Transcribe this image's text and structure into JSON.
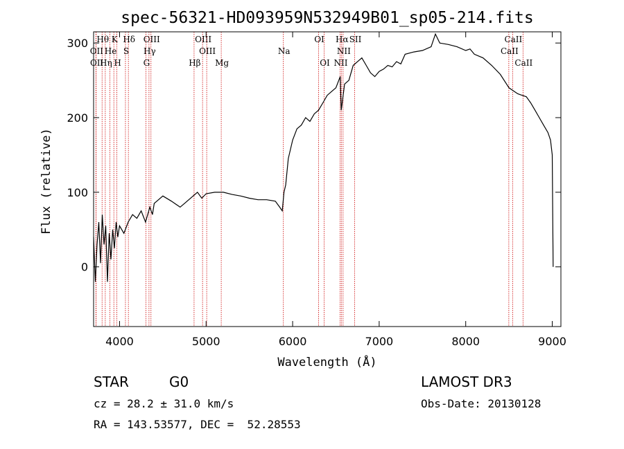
{
  "chart_data": {
    "type": "line",
    "title": "spec-56321-HD093959N532949B01_sp05-214.fits",
    "xlabel": "Wavelength (Å)",
    "ylabel": "Flux (relative)",
    "xlim": [
      3700,
      9100
    ],
    "ylim": [
      -80,
      315
    ],
    "x_ticks": [
      4000,
      5000,
      6000,
      7000,
      8000,
      9000
    ],
    "y_ticks": [
      0,
      100,
      200,
      300
    ],
    "series": [
      {
        "name": "flux",
        "x": [
          3700,
          3720,
          3740,
          3760,
          3780,
          3800,
          3820,
          3840,
          3860,
          3880,
          3900,
          3920,
          3940,
          3960,
          3980,
          4000,
          4050,
          4100,
          4150,
          4200,
          4250,
          4300,
          4350,
          4380,
          4400,
          4450,
          4500,
          4600,
          4700,
          4750,
          4800,
          4850,
          4900,
          4950,
          5000,
          5100,
          5200,
          5300,
          5400,
          5500,
          5600,
          5700,
          5800,
          5850,
          5880,
          5900,
          5920,
          5950,
          6000,
          6050,
          6100,
          6150,
          6200,
          6250,
          6300,
          6350,
          6400,
          6450,
          6500,
          6550,
          6562,
          6600,
          6650,
          6700,
          6750,
          6800,
          6850,
          6900,
          6950,
          7000,
          7050,
          7100,
          7150,
          7200,
          7250,
          7300,
          7400,
          7500,
          7600,
          7650,
          7700,
          7800,
          7900,
          8000,
          8050,
          8100,
          8200,
          8300,
          8400,
          8500,
          8550,
          8600,
          8650,
          8700,
          8750,
          8800,
          8850,
          8900,
          8950,
          8980,
          9000,
          9010
        ],
        "y": [
          40,
          -20,
          30,
          60,
          5,
          70,
          30,
          55,
          -20,
          45,
          10,
          50,
          25,
          60,
          40,
          55,
          45,
          60,
          70,
          65,
          75,
          60,
          80,
          70,
          85,
          90,
          95,
          88,
          80,
          85,
          90,
          95,
          100,
          92,
          98,
          100,
          100,
          97,
          95,
          92,
          90,
          90,
          88,
          80,
          75,
          100,
          110,
          145,
          170,
          185,
          190,
          200,
          195,
          205,
          210,
          220,
          230,
          235,
          240,
          255,
          210,
          245,
          250,
          270,
          275,
          280,
          270,
          260,
          255,
          262,
          265,
          270,
          268,
          275,
          272,
          285,
          288,
          290,
          295,
          312,
          300,
          298,
          295,
          290,
          292,
          285,
          280,
          270,
          258,
          240,
          236,
          232,
          230,
          228,
          220,
          210,
          200,
          190,
          180,
          170,
          150,
          0
        ]
      }
    ],
    "lines_upper": [
      {
        "label": "Hθ",
        "x": 3798
      },
      {
        "label": "K",
        "x": 3934
      },
      {
        "label": "Hδ",
        "x": 4102
      },
      {
        "label": "OIII",
        "x": 4363
      },
      {
        "label": "OIII",
        "x": 4959
      },
      {
        "label": "OI",
        "x": 6300
      },
      {
        "label": "Hα",
        "x": 6563
      },
      {
        "label": "SII",
        "x": 6717
      },
      {
        "label": "CaII",
        "x": 8542
      }
    ],
    "lines_mid": [
      {
        "label": "OII",
        "x": 3727
      },
      {
        "label": "He",
        "x": 3889
      },
      {
        "label": "S",
        "x": 4068
      },
      {
        "label": "Hγ",
        "x": 4340
      },
      {
        "label": "OIII",
        "x": 5007
      },
      {
        "label": "Na",
        "x": 5893
      },
      {
        "label": "NII",
        "x": 6583
      },
      {
        "label": "CaII",
        "x": 8498
      }
    ],
    "lines_low": [
      {
        "label": "OII",
        "x": 3729
      },
      {
        "label": "Hη",
        "x": 3835
      },
      {
        "label": "H",
        "x": 3969
      },
      {
        "label": "G",
        "x": 4304
      },
      {
        "label": "Hβ",
        "x": 4861
      },
      {
        "label": "Mg",
        "x": 5175
      },
      {
        "label": "OI",
        "x": 6364
      },
      {
        "label": "NII",
        "x": 6548
      },
      {
        "label": "CaII",
        "x": 8662
      }
    ],
    "line_color": "#000000",
    "marker_color": "#cc0000"
  },
  "info": {
    "obj_class": "STAR",
    "subclass": "G0",
    "survey": "LAMOST DR3",
    "cz": "cz = 28.2 ± 31.0 km/s",
    "obs_date": "Obs-Date: 20130128",
    "coords": "RA = 143.53577, DEC =  52.28553"
  }
}
